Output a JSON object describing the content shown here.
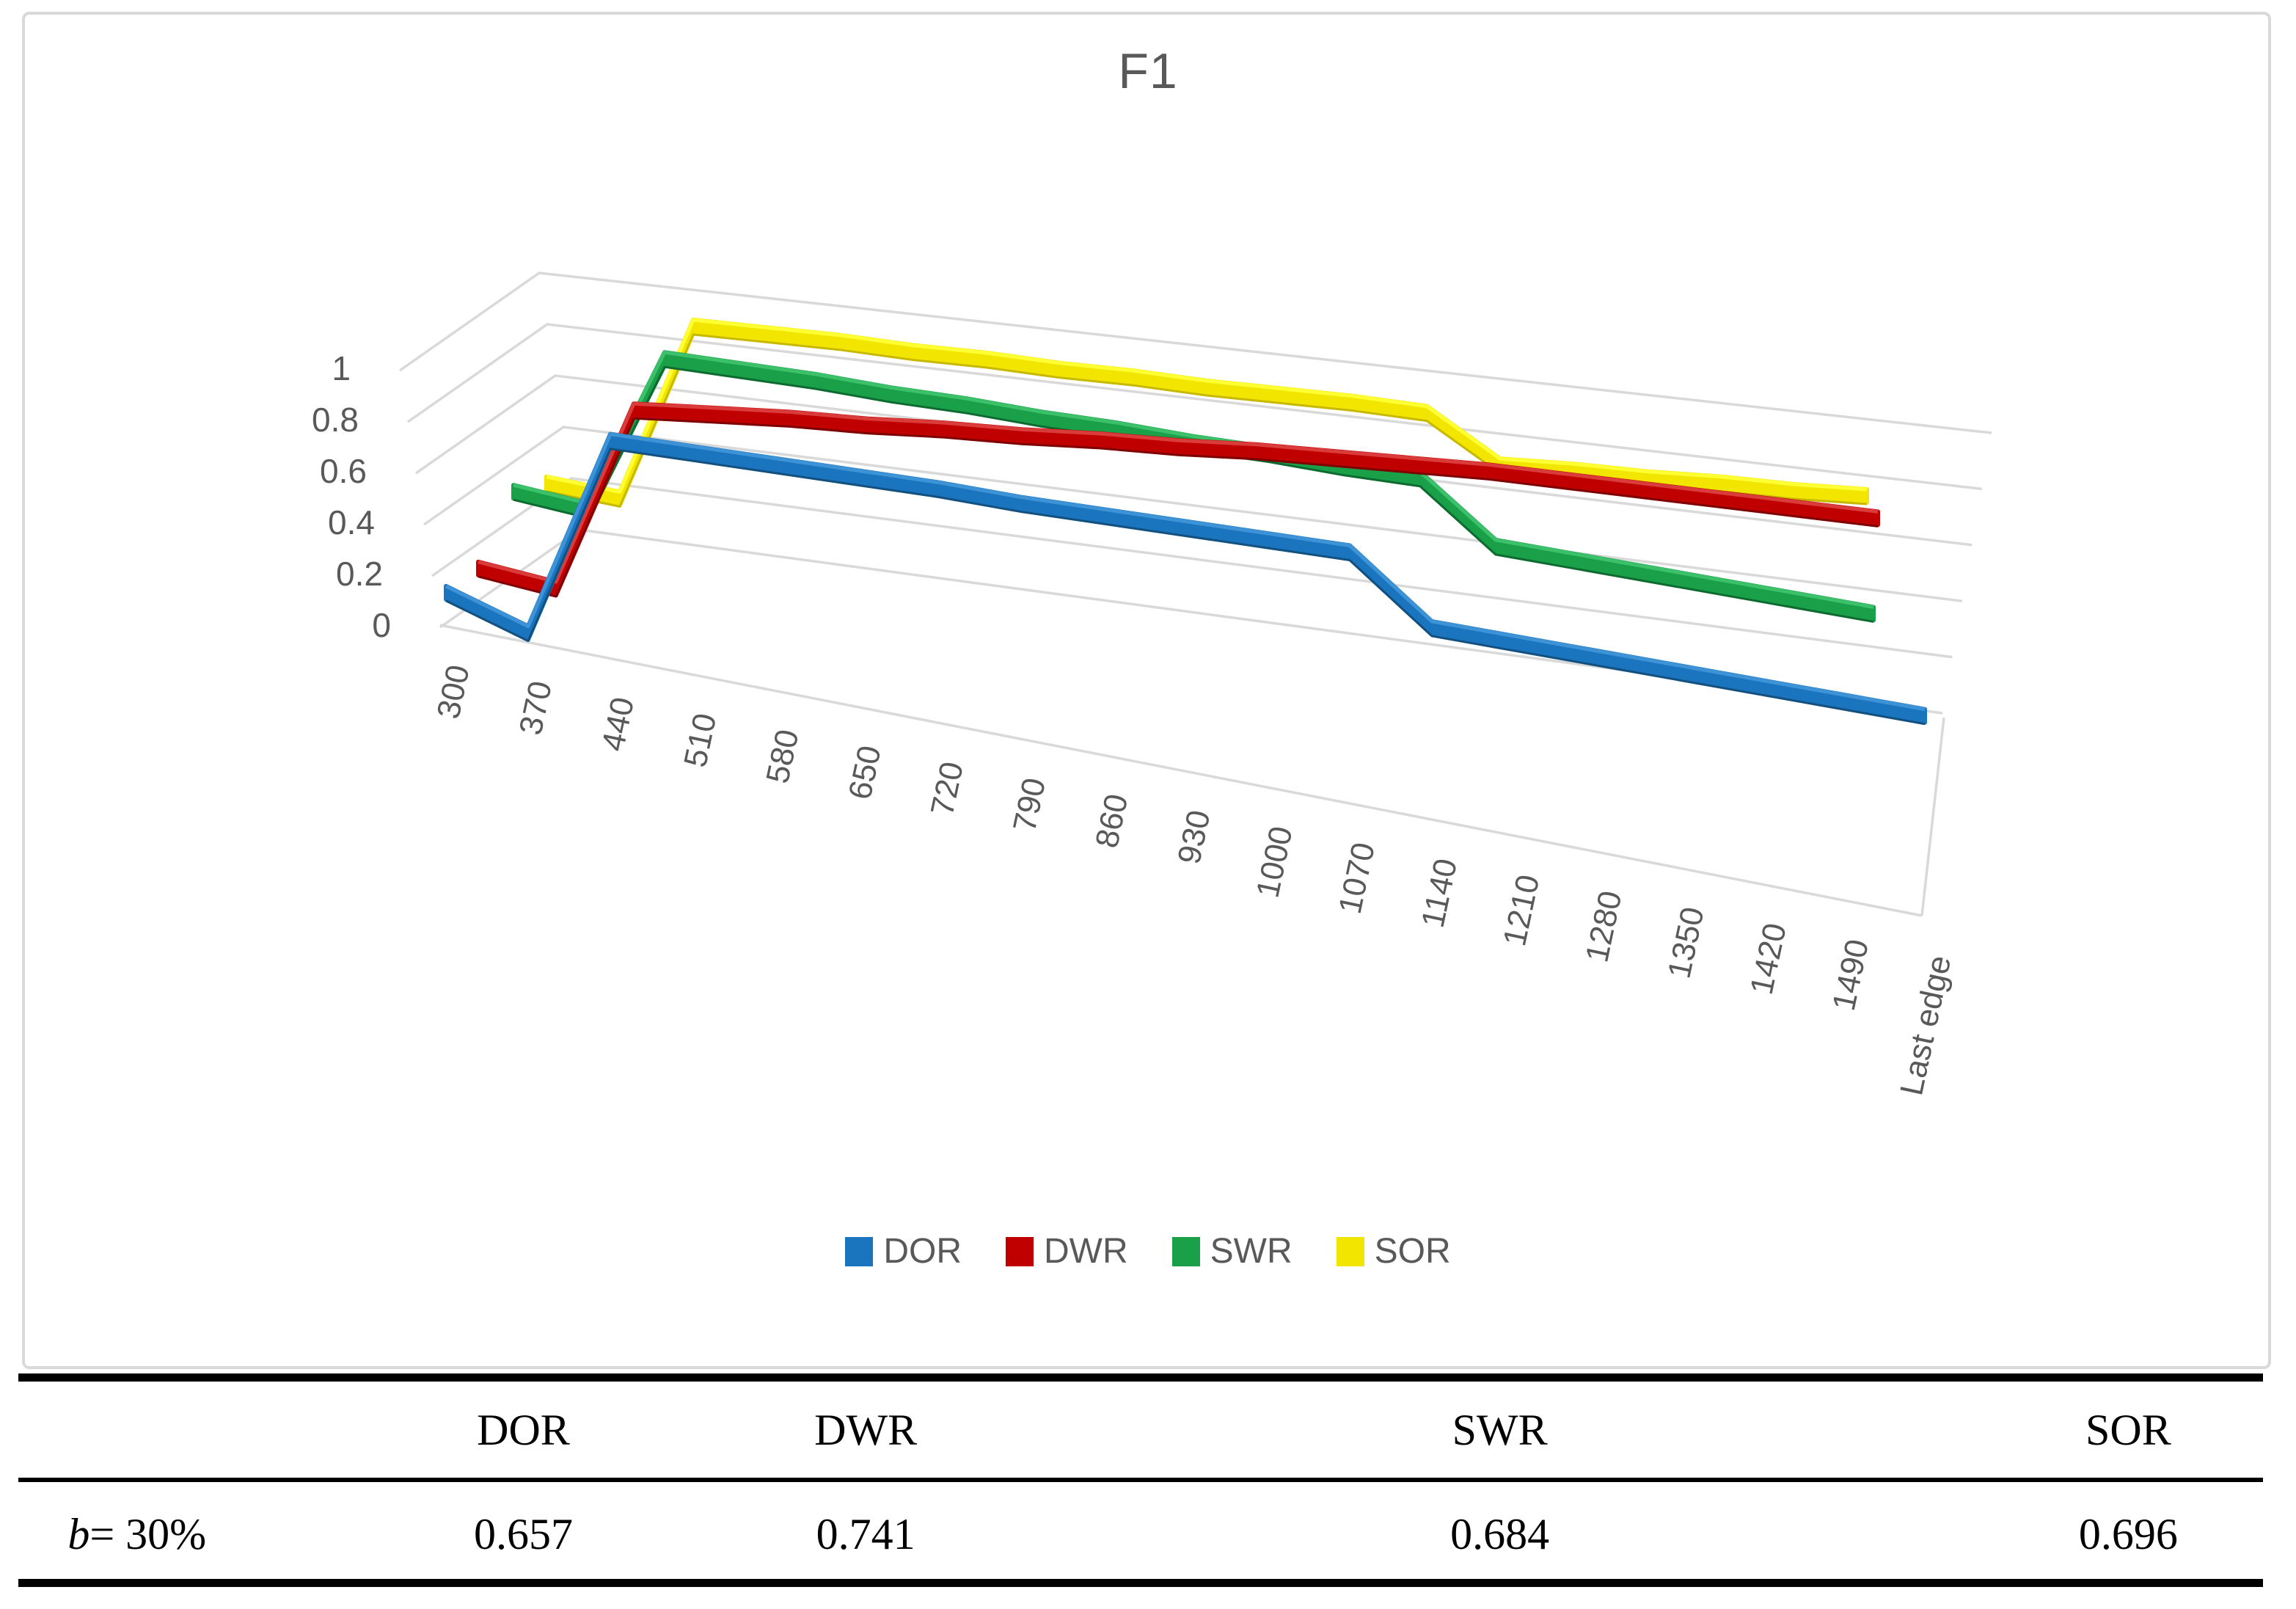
{
  "chart_data": {
    "type": "3d-line",
    "title": "F1",
    "categories": [
      "300",
      "370",
      "440",
      "510",
      "580",
      "650",
      "720",
      "790",
      "860",
      "930",
      "1000",
      "1070",
      "1140",
      "1210",
      "1280",
      "1350",
      "1420",
      "1490",
      "Last edge"
    ],
    "series": [
      {
        "name": "DOR",
        "color": "#1B74BE",
        "color_light": "#3E93D6",
        "color_dark": "#11507F",
        "values": [
          0.17,
          0.05,
          0.84,
          0.83,
          0.82,
          0.81,
          0.8,
          0.78,
          0.77,
          0.76,
          0.75,
          0.74,
          0.48,
          0.46,
          0.44,
          0.42,
          0.4,
          0.38,
          0.36
        ]
      },
      {
        "name": "DWR",
        "color": "#C00000",
        "color_light": "#DA3B3B",
        "color_dark": "#7E0000",
        "values": [
          0.27,
          0.2,
          0.88,
          0.87,
          0.86,
          0.84,
          0.83,
          0.81,
          0.8,
          0.78,
          0.77,
          0.75,
          0.73,
          0.71,
          0.68,
          0.65,
          0.62,
          0.59,
          0.56
        ]
      },
      {
        "name": "SWR",
        "color": "#19A049",
        "color_light": "#3CC06A",
        "color_dark": "#0E6B30",
        "values": [
          0.32,
          0.28,
          0.92,
          0.91,
          0.9,
          0.88,
          0.87,
          0.85,
          0.84,
          0.82,
          0.81,
          0.79,
          0.78,
          0.54,
          0.52,
          0.5,
          0.48,
          0.46,
          0.44
        ]
      },
      {
        "name": "SOR",
        "color": "#F2E600",
        "color_light": "#FFFF33",
        "color_dark": "#C7B800",
        "values": [
          0.28,
          0.24,
          0.95,
          0.94,
          0.93,
          0.91,
          0.9,
          0.88,
          0.87,
          0.85,
          0.84,
          0.83,
          0.81,
          0.62,
          0.62,
          0.61,
          0.61,
          0.6,
          0.6
        ]
      }
    ],
    "y_axis": {
      "min": 0,
      "max": 1,
      "ticks": [
        "0",
        "0.2",
        "0.4",
        "0.6",
        "0.8",
        "1"
      ]
    },
    "legend_position": "bottom",
    "grid": true,
    "text_color": "#595959",
    "grid_color": "#D9D9D9"
  },
  "table": {
    "headers": [
      "DOR",
      "DWR",
      "SWR",
      "SOR"
    ],
    "row_label_var": "b",
    "row_label_rest": " = 30%",
    "values": [
      "0.657",
      "0.741",
      "0.684",
      "0.696"
    ]
  }
}
